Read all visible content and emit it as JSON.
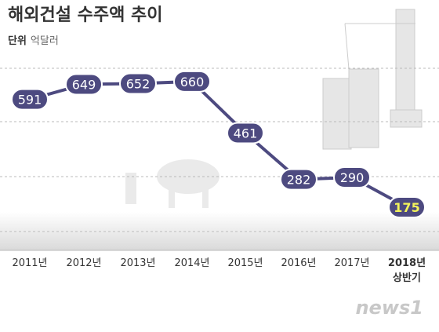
{
  "chart_data": {
    "type": "line",
    "title": "해외건설 수주액 추이",
    "unit_label": "단위",
    "unit": "억달러",
    "categories": [
      "2011년",
      "2012년",
      "2013년",
      "2014년",
      "2015년",
      "2016년",
      "2017년",
      "2018년 상반기"
    ],
    "values": [
      591,
      649,
      652,
      660,
      461,
      282,
      290,
      175
    ],
    "color": "#4d4a80",
    "last_label_color": "#f3f35a",
    "ylim": [
      81,
      711
    ],
    "grid": true
  },
  "watermark": "news1"
}
